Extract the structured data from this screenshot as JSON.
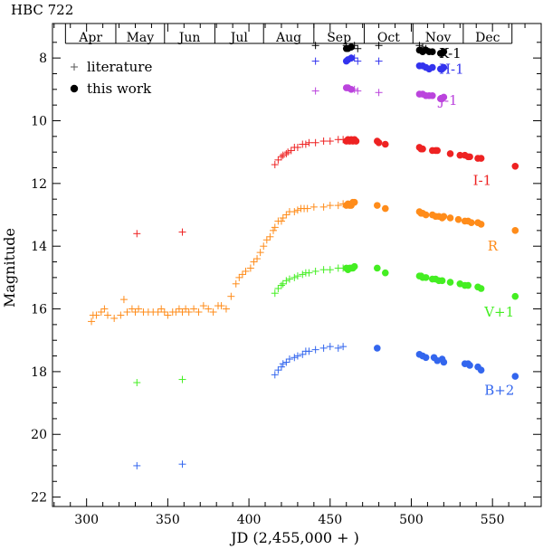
{
  "chart_data": {
    "type": "scatter",
    "title": "HBC 722",
    "xlabel": "JD (2,455,000 + )",
    "ylabel": "Magnitude",
    "xlim": [
      279,
      580
    ],
    "ylim": [
      22.3,
      6.9
    ],
    "y_inverted": true,
    "xticks": [
      300,
      350,
      400,
      450,
      500,
      550
    ],
    "yticks": [
      8,
      10,
      12,
      14,
      16,
      18,
      20,
      22
    ],
    "months": [
      {
        "label": "Apr",
        "start": 287,
        "end": 318
      },
      {
        "label": "May",
        "start": 318,
        "end": 348
      },
      {
        "label": "Jun",
        "start": 348,
        "end": 379
      },
      {
        "label": "Jul",
        "start": 379,
        "end": 409
      },
      {
        "label": "Aug",
        "start": 409,
        "end": 440
      },
      {
        "label": "Sep",
        "start": 440,
        "end": 471
      },
      {
        "label": "Oct",
        "start": 471,
        "end": 501
      },
      {
        "label": "Nov",
        "start": 501,
        "end": 532
      },
      {
        "label": "Dec",
        "start": 532,
        "end": 562
      }
    ],
    "legend": {
      "position": "top-left",
      "entries": [
        {
          "marker": "plus",
          "label": "literature"
        },
        {
          "marker": "dot",
          "label": "this work"
        }
      ]
    },
    "series": [
      {
        "name": "K-1",
        "color": "#000000",
        "label_at": [
          517,
          7.85
        ],
        "literature": {
          "x": [
            441,
            460,
            463,
            465,
            467,
            480,
            505,
            507,
            509
          ],
          "y": [
            7.6,
            7.6,
            7.65,
            7.6,
            7.7,
            7.6,
            7.6,
            7.65,
            7.7
          ]
        },
        "this_work": {
          "x": [
            460,
            461,
            463,
            505,
            507,
            509,
            511,
            513,
            518,
            519,
            520
          ],
          "y": [
            7.7,
            7.7,
            7.65,
            7.75,
            7.8,
            7.75,
            7.8,
            7.8,
            7.85,
            7.85,
            7.8
          ]
        }
      },
      {
        "name": "H-1",
        "color": "#3333ee",
        "label_at": [
          517,
          8.35
        ],
        "literature": {
          "x": [
            441,
            463,
            465,
            467,
            480
          ],
          "y": [
            8.1,
            8.0,
            8.0,
            8.1,
            8.1
          ]
        },
        "this_work": {
          "x": [
            460,
            461,
            463,
            505,
            507,
            509,
            511,
            513,
            518,
            519,
            520
          ],
          "y": [
            8.1,
            8.05,
            8.0,
            8.25,
            8.25,
            8.3,
            8.35,
            8.3,
            8.35,
            8.35,
            8.3
          ]
        }
      },
      {
        "name": "J-1",
        "color": "#bb44dd",
        "label_at": [
          517,
          9.35
        ],
        "literature": {
          "x": [
            441,
            465,
            467,
            480
          ],
          "y": [
            9.05,
            9.0,
            9.05,
            9.1
          ]
        },
        "this_work": {
          "x": [
            460,
            461,
            463,
            505,
            507,
            509,
            511,
            513,
            518,
            519,
            520
          ],
          "y": [
            8.95,
            8.95,
            9.0,
            9.15,
            9.15,
            9.2,
            9.2,
            9.2,
            9.3,
            9.3,
            9.25
          ]
        }
      },
      {
        "name": "I-1",
        "color": "#ee2222",
        "label_at": [
          538,
          11.9
        ],
        "literature": {
          "x": [
            331,
            359,
            416,
            418,
            420,
            421,
            423,
            424,
            426,
            428,
            430,
            433,
            435,
            437,
            441,
            446,
            450,
            455,
            458
          ],
          "y": [
            13.6,
            13.55,
            11.4,
            11.25,
            11.15,
            11.1,
            11.05,
            11.0,
            10.95,
            10.85,
            10.85,
            10.75,
            10.75,
            10.7,
            10.7,
            10.65,
            10.65,
            10.6,
            10.6
          ]
        },
        "this_work": {
          "x": [
            460,
            461,
            462,
            463,
            464,
            465,
            466,
            479,
            480,
            484,
            505,
            506,
            507,
            513,
            515,
            516,
            524,
            530,
            533,
            535,
            536,
            541,
            543,
            564
          ],
          "y": [
            10.65,
            10.6,
            10.65,
            10.6,
            10.65,
            10.6,
            10.65,
            10.65,
            10.7,
            10.75,
            10.85,
            10.9,
            10.9,
            10.95,
            10.95,
            10.95,
            11.05,
            11.1,
            11.1,
            11.15,
            11.15,
            11.2,
            11.2,
            11.45
          ]
        }
      },
      {
        "name": "R",
        "color": "#ff8c1a",
        "label_at": [
          547,
          14.0
        ],
        "literature": {
          "x": [
            303,
            304,
            306,
            309,
            311,
            313,
            317,
            321,
            323,
            325,
            328,
            330,
            332,
            335,
            338,
            341,
            344,
            346,
            348,
            350,
            353,
            355,
            357,
            359,
            361,
            363,
            366,
            369,
            372,
            375,
            378,
            381,
            383,
            386,
            389,
            392,
            394,
            396,
            398,
            401,
            403,
            405,
            407,
            409,
            411,
            413,
            415,
            416,
            418,
            420,
            421,
            423,
            425,
            428,
            430,
            432,
            434,
            436,
            440,
            446,
            450,
            455,
            458
          ],
          "y": [
            16.4,
            16.2,
            16.2,
            16.1,
            16.0,
            16.2,
            16.3,
            16.2,
            15.7,
            16.1,
            16.0,
            16.1,
            16.0,
            16.1,
            16.1,
            16.1,
            16.1,
            16.0,
            16.1,
            16.2,
            16.1,
            16.1,
            16.0,
            16.1,
            16.0,
            16.1,
            16.0,
            16.1,
            15.9,
            16.0,
            16.1,
            15.9,
            15.9,
            16.0,
            15.6,
            15.2,
            15.0,
            14.9,
            14.8,
            14.7,
            14.5,
            14.4,
            14.2,
            14.0,
            13.8,
            13.7,
            13.5,
            13.4,
            13.2,
            13.2,
            13.1,
            13.0,
            12.9,
            12.9,
            12.85,
            12.8,
            12.8,
            12.8,
            12.75,
            12.75,
            12.7,
            12.7,
            12.65
          ]
        },
        "this_work": {
          "x": [
            460,
            461,
            462,
            463,
            464,
            465,
            479,
            484,
            505,
            506,
            507,
            509,
            513,
            515,
            517,
            519,
            520,
            524,
            529,
            533,
            535,
            537,
            541,
            543,
            564
          ],
          "y": [
            12.7,
            12.65,
            12.7,
            12.7,
            12.6,
            12.6,
            12.7,
            12.8,
            12.9,
            12.95,
            12.95,
            13.0,
            13.0,
            13.05,
            13.05,
            13.1,
            13.05,
            13.1,
            13.15,
            13.2,
            13.2,
            13.25,
            13.25,
            13.3,
            13.5
          ]
        }
      },
      {
        "name": "V+1",
        "color": "#44ee22",
        "label_at": [
          545,
          16.1
        ],
        "literature": {
          "x": [
            331,
            359,
            416,
            418,
            420,
            421,
            423,
            425,
            428,
            430,
            433,
            435,
            437,
            441,
            446,
            450,
            455,
            458
          ],
          "y": [
            18.35,
            18.25,
            15.5,
            15.35,
            15.25,
            15.2,
            15.1,
            15.05,
            15.0,
            14.95,
            14.9,
            14.85,
            14.85,
            14.8,
            14.75,
            14.75,
            14.7,
            14.7
          ]
        },
        "this_work": {
          "x": [
            460,
            461,
            462,
            463,
            464,
            465,
            479,
            484,
            505,
            506,
            507,
            509,
            513,
            515,
            517,
            519,
            524,
            530,
            533,
            535,
            541,
            543,
            564
          ],
          "y": [
            14.7,
            14.75,
            14.7,
            14.7,
            14.7,
            14.65,
            14.7,
            14.85,
            14.95,
            14.95,
            15.0,
            15.0,
            15.05,
            15.05,
            15.1,
            15.1,
            15.15,
            15.2,
            15.25,
            15.25,
            15.3,
            15.35,
            15.6
          ]
        }
      },
      {
        "name": "B+2",
        "color": "#3366ee",
        "label_at": [
          545,
          18.6
        ],
        "literature": {
          "x": [
            331,
            359,
            416,
            418,
            420,
            421,
            423,
            425,
            428,
            430,
            433,
            435,
            437,
            441,
            446,
            450,
            455,
            458
          ],
          "y": [
            21.0,
            20.95,
            18.1,
            17.95,
            17.85,
            17.75,
            17.7,
            17.6,
            17.55,
            17.5,
            17.45,
            17.35,
            17.35,
            17.3,
            17.25,
            17.2,
            17.25,
            17.2
          ]
        },
        "this_work": {
          "x": [
            479,
            505,
            507,
            509,
            514,
            516,
            519,
            520,
            533,
            535,
            536,
            541,
            543,
            564
          ],
          "y": [
            17.25,
            17.45,
            17.5,
            17.55,
            17.55,
            17.65,
            17.6,
            17.7,
            17.75,
            17.75,
            17.8,
            17.85,
            17.95,
            18.15
          ]
        }
      }
    ]
  }
}
